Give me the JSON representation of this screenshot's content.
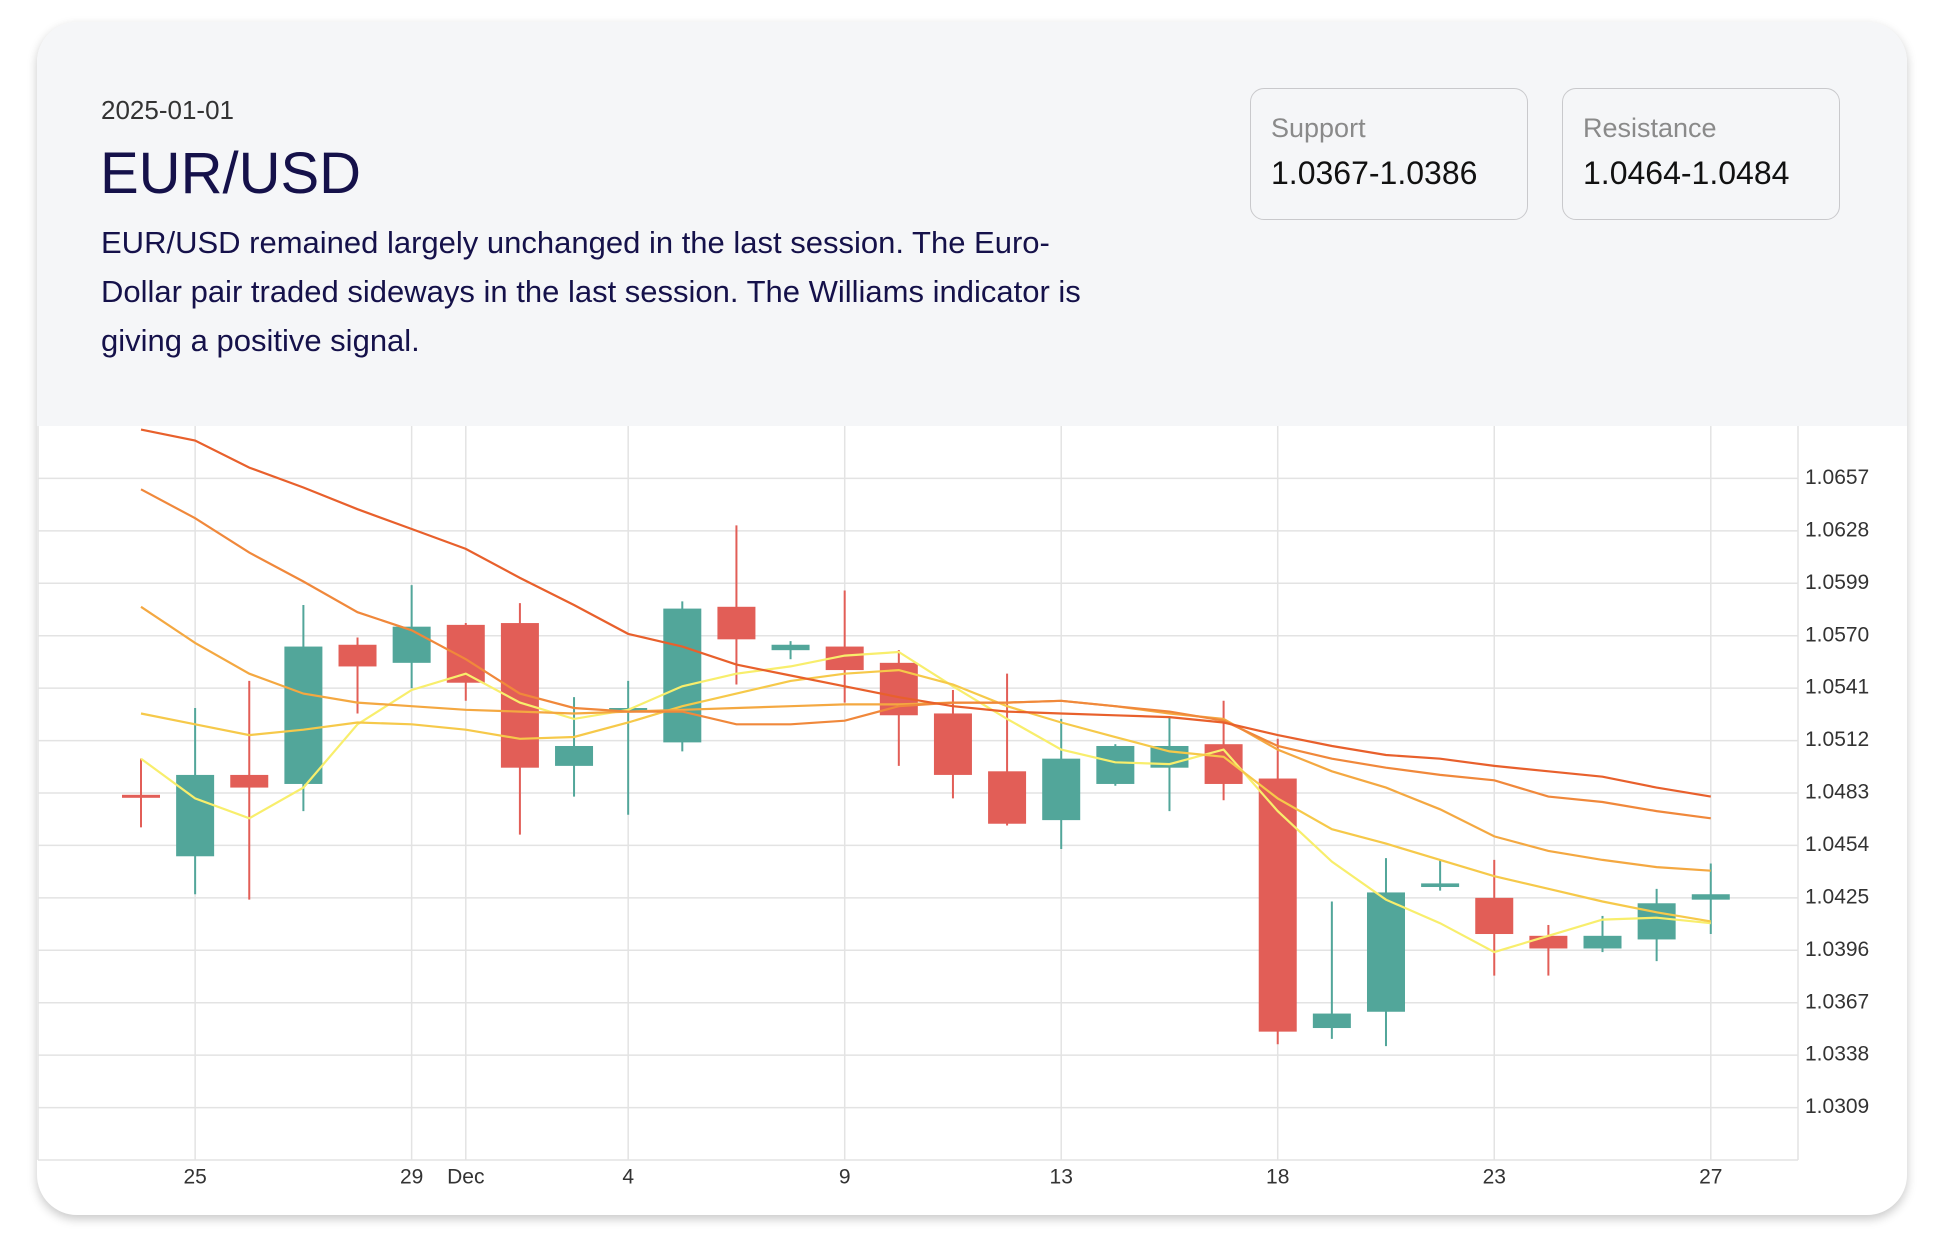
{
  "header": {
    "date": "2025-01-01",
    "title": "EUR/USD",
    "description": "EUR/USD remained largely unchanged in the last session. The Euro-Dollar pair traded sideways in the last session. The Williams indicator is giving a positive signal.",
    "levels": [
      {
        "label": "Support",
        "value": "1.0367-1.0386"
      },
      {
        "label": "Resistance",
        "value": "1.0464-1.0484"
      }
    ]
  },
  "chart_data": {
    "type": "candlestick",
    "categories": [
      null,
      "25",
      null,
      null,
      null,
      "29",
      "Dec",
      null,
      null,
      "4",
      null,
      null,
      null,
      "9",
      null,
      null,
      null,
      "13",
      null,
      null,
      null,
      "18",
      null,
      null,
      null,
      "23",
      null,
      null,
      null,
      "27"
    ],
    "open": [
      1.0482,
      1.0448,
      1.0493,
      1.0488,
      1.0565,
      1.0555,
      1.0576,
      1.0577,
      1.0498,
      1.0529,
      1.0511,
      1.0586,
      1.0562,
      1.0564,
      1.0555,
      1.0527,
      1.0495,
      1.0468,
      1.0488,
      1.0497,
      1.051,
      1.0491,
      1.0353,
      1.0362,
      1.0431,
      1.0425,
      1.0404,
      1.0397,
      1.0402,
      1.0424
    ],
    "high": [
      1.0502,
      1.053,
      1.0545,
      1.0587,
      1.0569,
      1.0598,
      1.0577,
      1.0588,
      1.0536,
      1.0545,
      1.0589,
      1.0631,
      1.0567,
      1.0595,
      1.0562,
      1.054,
      1.0549,
      1.0524,
      1.051,
      1.0525,
      1.0534,
      1.0513,
      1.0423,
      1.0447,
      1.0446,
      1.0446,
      1.041,
      1.0415,
      1.043,
      1.0444
    ],
    "low": [
      1.0464,
      1.0427,
      1.0424,
      1.0473,
      1.0527,
      1.0541,
      1.0534,
      1.046,
      1.0481,
      1.0471,
      1.0506,
      1.0543,
      1.0557,
      1.0533,
      1.0498,
      1.048,
      1.0465,
      1.0452,
      1.0487,
      1.0473,
      1.0479,
      1.0344,
      1.0347,
      1.0343,
      1.0429,
      1.0382,
      1.0382,
      1.0395,
      1.039,
      1.0405
    ],
    "close": [
      1.0481,
      1.0493,
      1.0486,
      1.0564,
      1.0553,
      1.0575,
      1.0544,
      1.0497,
      1.0509,
      1.053,
      1.0585,
      1.0568,
      1.0565,
      1.0551,
      1.0526,
      1.0493,
      1.0466,
      1.0502,
      1.0509,
      1.0509,
      1.0488,
      1.0351,
      1.0361,
      1.0428,
      1.0433,
      1.0405,
      1.0397,
      1.0404,
      1.0422,
      1.0427
    ],
    "increasing_color": "#52a69a",
    "decreasing_color": "#e25e57",
    "series": [
      {
        "color": "#f8ee6c",
        "values": [
          1.0502,
          1.048,
          1.0469,
          1.0486,
          1.0521,
          1.054,
          1.0549,
          1.0533,
          1.0524,
          1.0529,
          1.0542,
          1.0549,
          1.0553,
          1.0559,
          1.0561,
          1.0542,
          1.0524,
          1.0507,
          1.05,
          1.0499,
          1.0507,
          1.0473,
          1.0445,
          1.0424,
          1.0411,
          1.0395,
          1.0404,
          1.0413,
          1.0414,
          1.0411
        ]
      },
      {
        "color": "#f6c94a",
        "values": [
          1.0527,
          1.0521,
          1.0515,
          1.0518,
          1.0522,
          1.0521,
          1.0518,
          1.0513,
          1.0514,
          1.0522,
          1.0531,
          1.0538,
          1.0545,
          1.0549,
          1.0551,
          1.0543,
          1.0531,
          1.0522,
          1.0514,
          1.0506,
          1.0503,
          1.048,
          1.0463,
          1.0455,
          1.0446,
          1.0437,
          1.043,
          1.0423,
          1.0417,
          1.0412
        ]
      },
      {
        "color": "#f4a841",
        "values": [
          1.0586,
          1.0566,
          1.0549,
          1.0538,
          1.0533,
          1.0531,
          1.0529,
          1.0528,
          1.0527,
          1.0528,
          1.0529,
          1.053,
          1.0531,
          1.0532,
          1.0532,
          1.0533,
          1.0533,
          1.0534,
          1.0531,
          1.0527,
          1.0524,
          1.0507,
          1.0495,
          1.0486,
          1.0474,
          1.0459,
          1.0451,
          1.0446,
          1.0442,
          1.044
        ]
      },
      {
        "color": "#f0883b",
        "values": [
          1.0651,
          1.0635,
          1.0616,
          1.06,
          1.0583,
          1.0573,
          1.0557,
          1.0538,
          1.053,
          1.0528,
          1.0528,
          1.0521,
          1.0521,
          1.0523,
          1.0531,
          1.0533,
          1.0533,
          1.0534,
          1.0531,
          1.0528,
          1.0523,
          1.0509,
          1.0502,
          1.0497,
          1.0493,
          1.049,
          1.0481,
          1.0478,
          1.0473,
          1.0469
        ]
      },
      {
        "color": "#e8602c",
        "values": [
          1.0684,
          1.0678,
          1.0663,
          1.0652,
          1.064,
          1.0629,
          1.0618,
          1.0602,
          1.0587,
          1.0571,
          1.0564,
          1.0554,
          1.0548,
          1.0542,
          1.0536,
          1.0531,
          1.0528,
          1.0527,
          1.0526,
          1.0525,
          1.0522,
          1.0515,
          1.0509,
          1.0504,
          1.0502,
          1.0498,
          1.0495,
          1.0492,
          1.0486,
          1.0481
        ]
      }
    ],
    "ylim": [
      1.028,
      1.0686
    ],
    "yticks": [
      1.0309,
      1.0338,
      1.0367,
      1.0396,
      1.0425,
      1.0454,
      1.0483,
      1.0512,
      1.0541,
      {
        "value": 1.057,
        "label": "1.0570"
      },
      1.0599,
      1.0628,
      1.0657
    ],
    "grid": true
  }
}
